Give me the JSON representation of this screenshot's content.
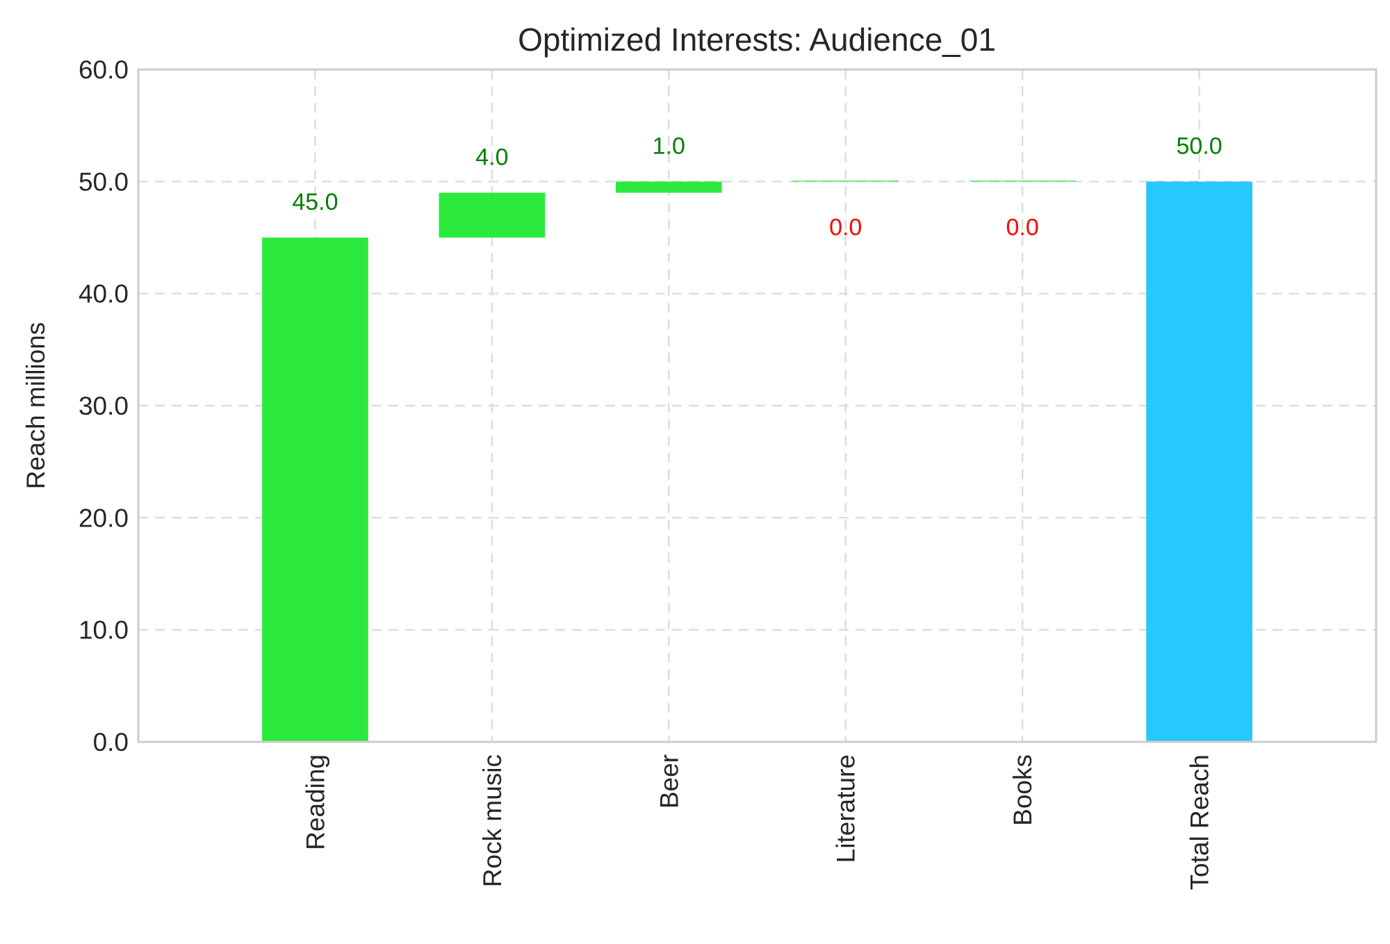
{
  "chart_data": {
    "type": "bar",
    "subtype": "waterfall",
    "title": "Optimized Interests: Audience_01",
    "xlabel": "",
    "ylabel": "Reach millions",
    "ylim": [
      0,
      60
    ],
    "yticks": [
      "0.0",
      "10.0",
      "20.0",
      "30.0",
      "40.0",
      "50.0",
      "60.0"
    ],
    "grid": true,
    "categories": [
      "Reading",
      "Rock music",
      "Beer",
      "Literature",
      "Books",
      "Total Reach"
    ],
    "values": [
      45.0,
      4.0,
      1.0,
      0.0,
      0.0,
      50.0
    ],
    "bases": [
      0,
      45.0,
      49.0,
      50.0,
      50.0,
      0
    ],
    "data_labels": [
      "45.0",
      "4.0",
      "1.0",
      "0.0",
      "0.0",
      "50.0"
    ],
    "bar_colors": [
      "#2bea3d",
      "#2bea3d",
      "#2bea3d",
      "#2bea3d",
      "#2bea3d",
      "#27c8fd"
    ],
    "label_colors": [
      "#008000",
      "#008000",
      "#008000",
      "#ff0000",
      "#ff0000",
      "#008000"
    ],
    "colors": {
      "increase": "#2bea3d",
      "total": "#27c8fd",
      "positive_label": "#008000",
      "zero_label": "#ff0000"
    }
  }
}
